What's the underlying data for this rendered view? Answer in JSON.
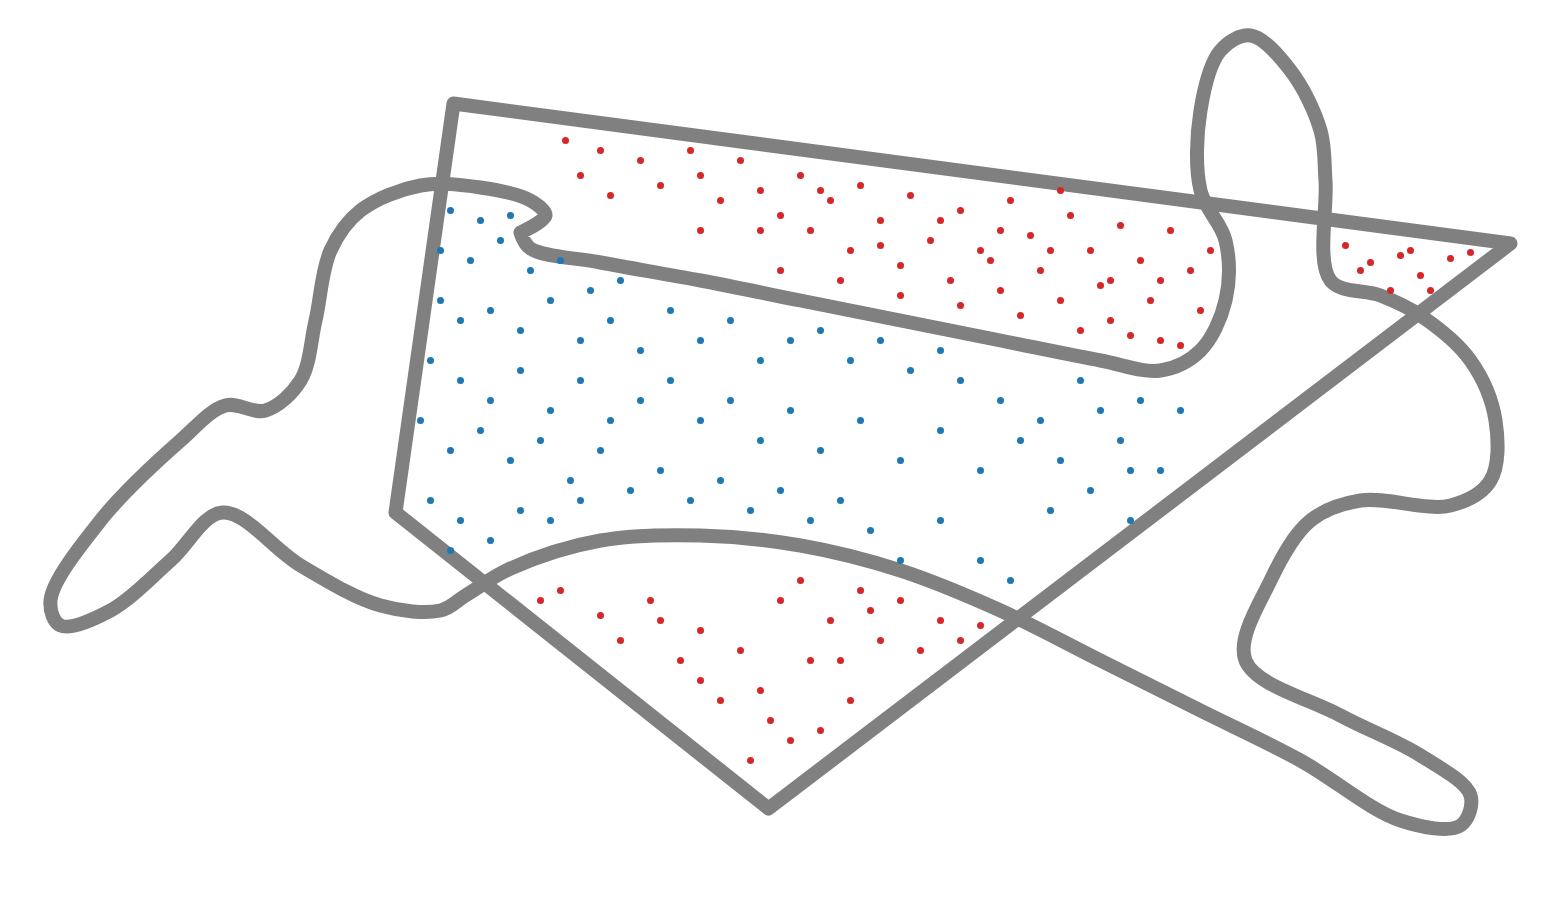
{
  "chart_data": {
    "type": "scatter",
    "xlim": [
      0,
      1563
    ],
    "ylim": [
      919,
      0
    ],
    "tick_labels": false,
    "grid": false,
    "series": [
      {
        "type": "scatter",
        "color": "#d62728",
        "marker": "circle",
        "x": [
          565,
          600,
          580,
          610,
          640,
          660,
          690,
          700,
          720,
          740,
          760,
          780,
          800,
          810,
          830,
          850,
          860,
          880,
          900,
          910,
          930,
          950,
          960,
          980,
          1000,
          1010,
          1030,
          1040,
          1060,
          1070,
          1090,
          1100,
          1110,
          1120,
          1140,
          1150,
          1160,
          1170,
          1190,
          1200,
          1180,
          1130,
          1080,
          1020,
          960,
          900,
          840,
          780,
          990,
          1050,
          1110,
          1160,
          1210,
          940,
          880,
          1000,
          1060,
          820,
          760,
          700,
          1345,
          1370,
          1400,
          1420,
          1450,
          1470,
          1390,
          1360,
          1430,
          1410,
          540,
          560,
          600,
          620,
          650,
          680,
          700,
          720,
          740,
          760,
          780,
          790,
          800,
          810,
          830,
          850,
          860,
          880,
          900,
          920,
          940,
          960,
          980,
          750,
          770,
          820,
          870,
          840,
          700,
          660
        ],
        "y": [
          140,
          150,
          175,
          195,
          160,
          185,
          150,
          175,
          200,
          160,
          190,
          215,
          175,
          230,
          200,
          250,
          185,
          220,
          265,
          195,
          240,
          280,
          210,
          250,
          290,
          200,
          235,
          270,
          300,
          215,
          250,
          285,
          320,
          225,
          260,
          300,
          340,
          230,
          270,
          310,
          345,
          335,
          330,
          315,
          305,
          295,
          280,
          270,
          260,
          250,
          280,
          280,
          250,
          220,
          245,
          230,
          190,
          190,
          230,
          230,
          245,
          262,
          255,
          275,
          258,
          252,
          290,
          270,
          290,
          250,
          600,
          590,
          615,
          640,
          600,
          660,
          630,
          700,
          650,
          690,
          600,
          740,
          580,
          660,
          620,
          700,
          590,
          640,
          600,
          650,
          620,
          640,
          625,
          760,
          720,
          730,
          610,
          660,
          680,
          620
        ]
      },
      {
        "type": "scatter",
        "color": "#1f77b4",
        "marker": "circle",
        "x": [
          450,
          480,
          510,
          440,
          470,
          500,
          530,
          560,
          590,
          620,
          440,
          460,
          490,
          520,
          550,
          580,
          610,
          640,
          670,
          700,
          730,
          760,
          790,
          820,
          850,
          880,
          910,
          940,
          430,
          460,
          490,
          520,
          550,
          580,
          610,
          640,
          670,
          700,
          730,
          760,
          790,
          820,
          860,
          900,
          940,
          980,
          1020,
          1060,
          1100,
          1140,
          1180,
          420,
          450,
          480,
          510,
          540,
          570,
          600,
          630,
          660,
          690,
          720,
          750,
          780,
          810,
          840,
          870,
          900,
          940,
          980,
          1010,
          1050,
          1090,
          1130,
          1160,
          430,
          460,
          490,
          520,
          550,
          580,
          1000,
          960,
          1080,
          1120,
          450,
          1040,
          1130
        ],
        "y": [
          210,
          220,
          215,
          250,
          260,
          240,
          270,
          260,
          290,
          280,
          300,
          320,
          310,
          330,
          300,
          340,
          320,
          350,
          310,
          340,
          320,
          360,
          340,
          330,
          360,
          340,
          370,
          350,
          360,
          380,
          400,
          370,
          410,
          380,
          420,
          400,
          380,
          420,
          400,
          440,
          410,
          450,
          420,
          460,
          430,
          470,
          440,
          460,
          410,
          400,
          410,
          420,
          450,
          430,
          460,
          440,
          480,
          450,
          490,
          470,
          500,
          480,
          510,
          490,
          520,
          500,
          530,
          560,
          520,
          560,
          580,
          510,
          490,
          470,
          470,
          500,
          520,
          540,
          510,
          520,
          500,
          400,
          380,
          380,
          440,
          550,
          420,
          520
        ]
      },
      {
        "type": "line",
        "color": "#808080",
        "line_style": "solid",
        "x": [
          453,
          1510,
          768,
          395,
          453
        ],
        "y": [
          103,
          243,
          808,
          512,
          103
        ]
      },
      {
        "type": "line",
        "color": "#808080",
        "line_style": "smooth",
        "x": [
          520,
          545,
          530,
          480,
          420,
          360,
          330,
          315,
          300,
          265,
          225,
          180,
          100,
          50,
          60,
          110,
          170,
          222,
          300,
          380,
          440,
          465,
          510,
          600,
          700,
          800,
          900,
          1000,
          1100,
          1200,
          1300,
          1400,
          1460,
          1470,
          1420,
          1340,
          1245,
          1270,
          1310,
          1360,
          1450,
          1490,
          1495,
          1470,
          1420,
          1380,
          1330,
          1325,
          1320,
          1290,
          1250,
          1220,
          1200,
          1200,
          1225,
          1225,
          1200,
          1160,
          1100,
          1000,
          900,
          800,
          700,
          600,
          530,
          520
        ],
        "y": [
          232,
          215,
          200,
          187,
          185,
          210,
          250,
          320,
          380,
          410,
          405,
          440,
          520,
          600,
          625,
          610,
          560,
          512,
          565,
          605,
          610,
          595,
          568,
          540,
          535,
          545,
          570,
          610,
          660,
          710,
          760,
          820,
          825,
          795,
          755,
          715,
          660,
          580,
          520,
          500,
          505,
          480,
          420,
          360,
          315,
          295,
          280,
          180,
          130,
          70,
          35,
          50,
          110,
          190,
          240,
          300,
          350,
          370,
          360,
          340,
          320,
          300,
          280,
          262,
          248,
          232
        ]
      }
    ]
  }
}
